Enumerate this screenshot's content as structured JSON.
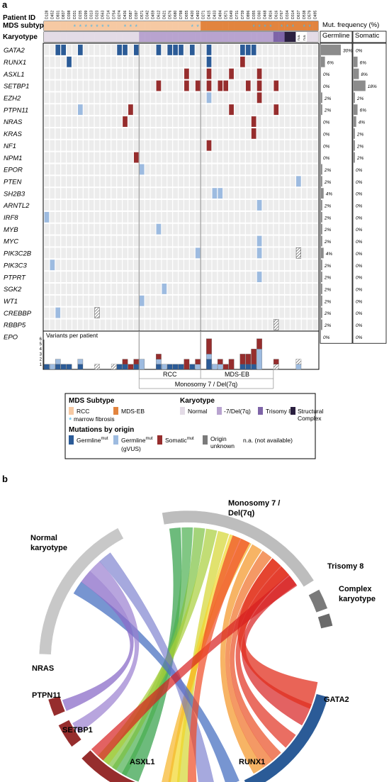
{
  "panel_a": {
    "label": "a",
    "header": {
      "patient_id_label": "Patient ID",
      "subtype_label": "MDS subtype",
      "karyotype_label": "Karyotype",
      "mut_freq_title": "Mut. frequency (%)",
      "germline_col": "Germline",
      "somatic_col": "Somatic"
    },
    "patient_ids": [
      "D128",
      "D452",
      "D831",
      "D837",
      "D398",
      "D331",
      "D235",
      "D299",
      "D313",
      "D323",
      "D563",
      "D714",
      "D754",
      "D274",
      "D436",
      "D587",
      "D397",
      "D571",
      "D342",
      "D459",
      "D612",
      "D621",
      "D576",
      "D680",
      "D798",
      "D655",
      "D420",
      "D492",
      "D271",
      "D415",
      "D433",
      "D494",
      "D571",
      "D649",
      "D731",
      "D739",
      "D896",
      "D355",
      "D360",
      "D468",
      "D816",
      "D616",
      "D767",
      "D334",
      "D314",
      "D637",
      "D538",
      "D579",
      "D495"
    ],
    "legend_markers": {
      "na": "n.a.",
      "fibrosis_star": "*"
    },
    "genes": [
      "GATA2",
      "RUNX1",
      "ASXL1",
      "SETBP1",
      "EZH2",
      "PTPN11",
      "NRAS",
      "KRAS",
      "NF1",
      "NPM1",
      "EPOR",
      "PTEN",
      "SH2B3",
      "ARNTL2",
      "IRF8",
      "MYB",
      "MYC",
      "PIK3C2B",
      "PIK3C3",
      "PTPRT",
      "SGK2",
      "WT1",
      "CREBBP",
      "RBBP5",
      "EPO"
    ],
    "germline_freq": [
      "30%",
      "6%",
      "0%",
      "0%",
      "2%",
      "2%",
      "0%",
      "0%",
      "0%",
      "0%",
      "2%",
      "2%",
      "4%",
      "2%",
      "2%",
      "2%",
      "2%",
      "4%",
      "2%",
      "2%",
      "2%",
      "2%",
      "2%",
      "2%",
      "0%"
    ],
    "somatic_freq": [
      "0%",
      "6%",
      "8%",
      "18%",
      "2%",
      "6%",
      "4%",
      "2%",
      "2%",
      "2%",
      "0%",
      "0%",
      "0%",
      "0%",
      "0%",
      "0%",
      "0%",
      "0%",
      "0%",
      "0%",
      "0%",
      "0%",
      "0%",
      "0%",
      "0%"
    ],
    "variants_title": "Variants per patient",
    "variants_ticks": [
      "6",
      "5",
      "4",
      "3",
      "2",
      "1"
    ],
    "bracket_labels": {
      "rcc": "RCC",
      "mdseb": "MDS-EB",
      "mono7": "Monosomy 7 / Del(7q)"
    }
  },
  "legend": {
    "subtype_title": "MDS Subtype",
    "subtype_items": [
      "RCC",
      "MDS-EB"
    ],
    "fibrosis": "marrow fibrosis",
    "karyotype_title": "Karyotype",
    "karyotype_items": [
      "Normal",
      "-7/Del(7q)",
      "Trisomy 8",
      "Structural Complex"
    ],
    "origin_title": "Mutations by origin",
    "origin_items": [
      {
        "label": "Germline",
        "sup": "mut",
        "sub": ""
      },
      {
        "label": "Germline",
        "sup": "mut",
        "sub": "(gVUS)"
      },
      {
        "label": "Somatic",
        "sup": "mut",
        "sub": ""
      },
      {
        "label": "Origin unknown",
        "sup": "",
        "sub": ""
      }
    ],
    "na_text": "n.a. (not available)"
  },
  "panel_b": {
    "label": "b",
    "karyotype_labels": {
      "normal": "Normal karyotype",
      "mono7": "Monosomy 7 / Del(7q)",
      "tri8": "Trisomy 8",
      "complex": "Complex karyotype"
    },
    "gene_labels": {
      "nras": "NRAS",
      "ptpn11": "PTPN11",
      "setbp1": "SETBP1",
      "asxl1": "ASXL1",
      "runx1": "RUNX1",
      "gata2": "GATA2"
    }
  },
  "colors": {
    "rcc": "#f6c9a3",
    "mdseb": "#e2843e",
    "fibrosis": "#4db6e8",
    "normal": "#e3dbe6",
    "mono7": "#b8a3cf",
    "tri8": "#7e64a8",
    "complex": "#2a1f3f",
    "germline": "#2b5b97",
    "gvus": "#9dbbe0",
    "somatic": "#962d2d",
    "unknown": "#7a7a7a",
    "cell": "#ececec",
    "bar": "#8c8c8c"
  },
  "chart_data": [
    {
      "type": "heatmap",
      "title": "",
      "columns": [
        "D128",
        "D452",
        "D831",
        "D837",
        "D398",
        "D331",
        "D235",
        "D299",
        "D313",
        "D323",
        "D563",
        "D714",
        "D754",
        "D274",
        "D436",
        "D587",
        "D397",
        "D571",
        "D342",
        "D459",
        "D612",
        "D621",
        "D576",
        "D680",
        "D798",
        "D655",
        "D420",
        "D492",
        "D271",
        "D415",
        "D433",
        "D494",
        "D571",
        "D649",
        "D731",
        "D739",
        "D896",
        "D355",
        "D360",
        "D468",
        "D816",
        "D616",
        "D767",
        "D334",
        "D314",
        "D637",
        "D538",
        "D579",
        "D495"
      ],
      "rows": [
        "GATA2",
        "RUNX1",
        "ASXL1",
        "SETBP1",
        "EZH2",
        "PTPN11",
        "NRAS",
        "KRAS",
        "NF1",
        "NPM1",
        "EPOR",
        "PTEN",
        "SH2B3",
        "ARNTL2",
        "IRF8",
        "MYB",
        "MYC",
        "PIK3C2B",
        "PIK3C3",
        "PTPRT",
        "SGK2",
        "WT1",
        "CREBBP",
        "RBBP5",
        "EPO"
      ],
      "subtype": [
        "RCC",
        "RCC",
        "RCC",
        "RCC",
        "RCC",
        "RCC",
        "RCC",
        "RCC",
        "RCC",
        "RCC",
        "RCC",
        "RCC",
        "RCC",
        "RCC",
        "RCC",
        "RCC",
        "RCC",
        "RCC",
        "RCC",
        "RCC",
        "RCC",
        "RCC",
        "RCC",
        "RCC",
        "RCC",
        "RCC",
        "RCC",
        "RCC",
        "MDS-EB",
        "MDS-EB",
        "MDS-EB",
        "MDS-EB",
        "MDS-EB",
        "MDS-EB",
        "MDS-EB",
        "MDS-EB",
        "MDS-EB",
        "MDS-EB",
        "MDS-EB",
        "MDS-EB",
        "MDS-EB",
        "MDS-EB",
        "MDS-EB",
        "MDS-EB",
        "MDS-EB",
        "MDS-EB",
        "MDS-EB",
        "MDS-EB",
        "MDS-EB"
      ],
      "karyotype": [
        "Normal",
        "Normal",
        "Normal",
        "Normal",
        "Normal",
        "Normal",
        "Normal",
        "Normal",
        "Normal",
        "Normal",
        "Normal",
        "Normal",
        "Normal",
        "Normal",
        "Normal",
        "Normal",
        "Normal",
        "-7/Del(7q)",
        "-7/Del(7q)",
        "-7/Del(7q)",
        "-7/Del(7q)",
        "-7/Del(7q)",
        "-7/Del(7q)",
        "-7/Del(7q)",
        "-7/Del(7q)",
        "-7/Del(7q)",
        "-7/Del(7q)",
        "-7/Del(7q)",
        "-7/Del(7q)",
        "-7/Del(7q)",
        "-7/Del(7q)",
        "-7/Del(7q)",
        "-7/Del(7q)",
        "-7/Del(7q)",
        "-7/Del(7q)",
        "-7/Del(7q)",
        "-7/Del(7q)",
        "-7/Del(7q)",
        "-7/Del(7q)",
        "-7/Del(7q)",
        "-7/Del(7q)",
        "Trisomy 8",
        "Trisomy 8",
        "Structural Complex",
        "Structural Complex",
        "n.a.",
        "n.a.",
        "Normal",
        "Normal"
      ],
      "fibrosis_columns": [
        5,
        6,
        7,
        8,
        9,
        10,
        11,
        14,
        15,
        16,
        26,
        27,
        37,
        38,
        39,
        40,
        42,
        43,
        44,
        46,
        47
      ],
      "mutations": [
        {
          "gene": "GATA2",
          "col": 2,
          "origin": "germline"
        },
        {
          "gene": "GATA2",
          "col": 3,
          "origin": "germline"
        },
        {
          "gene": "GATA2",
          "col": 6,
          "origin": "germline"
        },
        {
          "gene": "GATA2",
          "col": 13,
          "origin": "germline"
        },
        {
          "gene": "GATA2",
          "col": 14,
          "origin": "germline"
        },
        {
          "gene": "GATA2",
          "col": 16,
          "origin": "germline"
        },
        {
          "gene": "GATA2",
          "col": 20,
          "origin": "germline"
        },
        {
          "gene": "GATA2",
          "col": 22,
          "origin": "germline"
        },
        {
          "gene": "GATA2",
          "col": 23,
          "origin": "germline"
        },
        {
          "gene": "GATA2",
          "col": 24,
          "origin": "germline"
        },
        {
          "gene": "GATA2",
          "col": 26,
          "origin": "germline"
        },
        {
          "gene": "GATA2",
          "col": 29,
          "origin": "germline"
        },
        {
          "gene": "GATA2",
          "col": 35,
          "origin": "germline"
        },
        {
          "gene": "GATA2",
          "col": 36,
          "origin": "germline"
        },
        {
          "gene": "GATA2",
          "col": 37,
          "origin": "germline"
        },
        {
          "gene": "RUNX1",
          "col": 4,
          "origin": "germline"
        },
        {
          "gene": "RUNX1",
          "col": 29,
          "origin": "germline"
        },
        {
          "gene": "RUNX1",
          "col": 35,
          "origin": "somatic"
        },
        {
          "gene": "ASXL1",
          "col": 25,
          "origin": "somatic"
        },
        {
          "gene": "ASXL1",
          "col": 29,
          "origin": "somatic"
        },
        {
          "gene": "ASXL1",
          "col": 33,
          "origin": "somatic"
        },
        {
          "gene": "ASXL1",
          "col": 38,
          "origin": "somatic"
        },
        {
          "gene": "SETBP1",
          "col": 20,
          "origin": "somatic"
        },
        {
          "gene": "SETBP1",
          "col": 25,
          "origin": "somatic"
        },
        {
          "gene": "SETBP1",
          "col": 27,
          "origin": "somatic"
        },
        {
          "gene": "SETBP1",
          "col": 29,
          "origin": "somatic"
        },
        {
          "gene": "SETBP1",
          "col": 31,
          "origin": "somatic"
        },
        {
          "gene": "SETBP1",
          "col": 32,
          "origin": "somatic"
        },
        {
          "gene": "SETBP1",
          "col": 36,
          "origin": "somatic"
        },
        {
          "gene": "SETBP1",
          "col": 38,
          "origin": "somatic"
        },
        {
          "gene": "SETBP1",
          "col": 41,
          "origin": "somatic"
        },
        {
          "gene": "EZH2",
          "col": 29,
          "origin": "gvus"
        },
        {
          "gene": "EZH2",
          "col": 38,
          "origin": "somatic"
        },
        {
          "gene": "PTPN11",
          "col": 6,
          "origin": "gvus"
        },
        {
          "gene": "PTPN11",
          "col": 15,
          "origin": "somatic"
        },
        {
          "gene": "PTPN11",
          "col": 33,
          "origin": "somatic"
        },
        {
          "gene": "PTPN11",
          "col": 41,
          "origin": "somatic"
        },
        {
          "gene": "NRAS",
          "col": 14,
          "origin": "somatic"
        },
        {
          "gene": "NRAS",
          "col": 37,
          "origin": "somatic"
        },
        {
          "gene": "KRAS",
          "col": 37,
          "origin": "somatic"
        },
        {
          "gene": "NF1",
          "col": 29,
          "origin": "somatic"
        },
        {
          "gene": "NPM1",
          "col": 16,
          "origin": "somatic"
        },
        {
          "gene": "EPOR",
          "col": 17,
          "origin": "gvus"
        },
        {
          "gene": "PTEN",
          "col": 45,
          "origin": "gvus"
        },
        {
          "gene": "SH2B3",
          "col": 30,
          "origin": "gvus"
        },
        {
          "gene": "SH2B3",
          "col": 31,
          "origin": "gvus"
        },
        {
          "gene": "ARNTL2",
          "col": 38,
          "origin": "gvus"
        },
        {
          "gene": "IRF8",
          "col": 0,
          "origin": "gvus"
        },
        {
          "gene": "MYB",
          "col": 20,
          "origin": "gvus"
        },
        {
          "gene": "MYC",
          "col": 38,
          "origin": "gvus"
        },
        {
          "gene": "PIK3C2B",
          "col": 27,
          "origin": "gvus"
        },
        {
          "gene": "PIK3C2B",
          "col": 38,
          "origin": "gvus"
        },
        {
          "gene": "PIK3C2B",
          "col": 45,
          "origin": "unknown"
        },
        {
          "gene": "PIK3C3",
          "col": 1,
          "origin": "gvus"
        },
        {
          "gene": "PTPRT",
          "col": 38,
          "origin": "gvus"
        },
        {
          "gene": "SGK2",
          "col": 21,
          "origin": "gvus"
        },
        {
          "gene": "WT1",
          "col": 17,
          "origin": "gvus"
        },
        {
          "gene": "CREBBP",
          "col": 2,
          "origin": "gvus"
        },
        {
          "gene": "CREBBP",
          "col": 9,
          "origin": "unknown"
        },
        {
          "gene": "RBBP5",
          "col": 41,
          "origin": "unknown"
        },
        {
          "gene": "EPO",
          "col": 12,
          "origin": "unknown"
        }
      ]
    },
    {
      "type": "bar",
      "title": "Mut. frequency (%)",
      "categories": [
        "GATA2",
        "RUNX1",
        "ASXL1",
        "SETBP1",
        "EZH2",
        "PTPN11",
        "NRAS",
        "KRAS",
        "NF1",
        "NPM1",
        "EPOR",
        "PTEN",
        "SH2B3",
        "ARNTL2",
        "IRF8",
        "MYB",
        "MYC",
        "PIK3C2B",
        "PIK3C3",
        "PTPRT",
        "SGK2",
        "WT1",
        "CREBBP",
        "RBBP5",
        "EPO"
      ],
      "series": [
        {
          "name": "Germline",
          "values": [
            30,
            6,
            0,
            0,
            2,
            2,
            0,
            0,
            0,
            0,
            2,
            2,
            4,
            2,
            2,
            2,
            2,
            4,
            2,
            2,
            2,
            2,
            2,
            2,
            0
          ]
        },
        {
          "name": "Somatic",
          "values": [
            0,
            6,
            8,
            18,
            2,
            6,
            4,
            2,
            2,
            2,
            0,
            0,
            0,
            0,
            0,
            0,
            0,
            0,
            0,
            0,
            0,
            0,
            0,
            0,
            0
          ]
        }
      ],
      "orientation": "horizontal"
    },
    {
      "type": "bar",
      "title": "Variants per patient",
      "ylim": [
        0,
        6
      ],
      "stacks": [
        [
          {
            "o": "germline",
            "v": 1
          }
        ],
        [
          {
            "o": "gvus",
            "v": 1
          }
        ],
        [
          {
            "o": "germline",
            "v": 1
          },
          {
            "o": "gvus",
            "v": 1
          }
        ],
        [
          {
            "o": "germline",
            "v": 1
          }
        ],
        [
          {
            "o": "germline",
            "v": 1
          }
        ],
        [],
        [
          {
            "o": "germline",
            "v": 1
          },
          {
            "o": "gvus",
            "v": 1
          }
        ],
        [],
        [],
        [
          {
            "o": "unknown",
            "v": 1
          }
        ],
        [],
        [],
        [
          {
            "o": "unknown",
            "v": 1
          }
        ],
        [
          {
            "o": "germline",
            "v": 1
          }
        ],
        [
          {
            "o": "germline",
            "v": 1
          },
          {
            "o": "somatic",
            "v": 1
          }
        ],
        [
          {
            "o": "somatic",
            "v": 1
          }
        ],
        [
          {
            "o": "germline",
            "v": 1
          },
          {
            "o": "somatic",
            "v": 1
          }
        ],
        [
          {
            "o": "gvus",
            "v": 2
          }
        ],
        [],
        [],
        [
          {
            "o": "germline",
            "v": 1
          },
          {
            "o": "gvus",
            "v": 1
          },
          {
            "o": "somatic",
            "v": 1
          }
        ],
        [
          {
            "o": "gvus",
            "v": 1
          }
        ],
        [
          {
            "o": "germline",
            "v": 1
          }
        ],
        [
          {
            "o": "germline",
            "v": 1
          }
        ],
        [
          {
            "o": "germline",
            "v": 1
          }
        ],
        [
          {
            "o": "somatic",
            "v": 2
          }
        ],
        [
          {
            "o": "germline",
            "v": 1
          }
        ],
        [
          {
            "o": "gvus",
            "v": 1
          },
          {
            "o": "somatic",
            "v": 1
          }
        ],
        [],
        [
          {
            "o": "germline",
            "v": 2
          },
          {
            "o": "gvus",
            "v": 1
          },
          {
            "o": "somatic",
            "v": 3
          }
        ],
        [
          {
            "o": "gvus",
            "v": 1
          }
        ],
        [
          {
            "o": "gvus",
            "v": 1
          },
          {
            "o": "somatic",
            "v": 1
          }
        ],
        [
          {
            "o": "somatic",
            "v": 1
          }
        ],
        [
          {
            "o": "somatic",
            "v": 2
          }
        ],
        [],
        [
          {
            "o": "germline",
            "v": 1
          },
          {
            "o": "somatic",
            "v": 2
          }
        ],
        [
          {
            "o": "germline",
            "v": 1
          },
          {
            "o": "somatic",
            "v": 2
          }
        ],
        [
          {
            "o": "germline",
            "v": 1
          },
          {
            "o": "somatic",
            "v": 3
          }
        ],
        [
          {
            "o": "gvus",
            "v": 4
          },
          {
            "o": "somatic",
            "v": 2
          }
        ],
        [],
        [],
        [
          {
            "o": "unknown",
            "v": 1
          },
          {
            "o": "somatic",
            "v": 1
          }
        ],
        [],
        [],
        [],
        [
          {
            "o": "gvus",
            "v": 1
          },
          {
            "o": "unknown",
            "v": 1
          }
        ],
        [],
        [],
        []
      ]
    },
    {
      "type": "chord",
      "title": "",
      "groups": [
        "Normal karyotype",
        "Monosomy 7 / Del(7q)",
        "Trisomy 8",
        "Complex karyotype",
        "NRAS",
        "PTPN11",
        "SETBP1",
        "ASXL1",
        "RUNX1",
        "GATA2"
      ]
    }
  ]
}
